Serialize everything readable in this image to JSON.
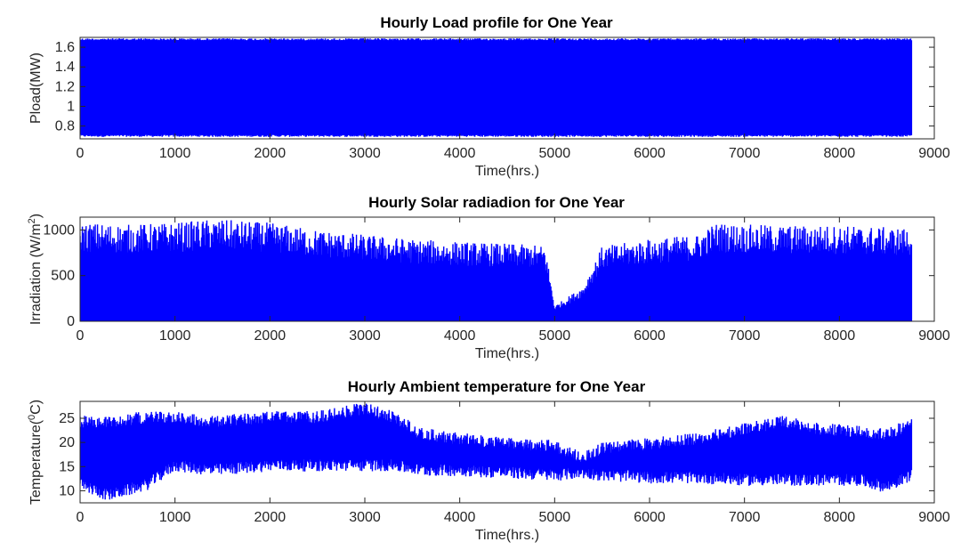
{
  "colors": {
    "series": "#0000ff",
    "axes": "#262626",
    "background": "#ffffff"
  },
  "chart_data": [
    {
      "type": "line",
      "title": "Hourly Load profile for One Year",
      "xlabel": "Time(hrs.)",
      "ylabel": "Pload(MW)",
      "xlim": [
        0,
        9000
      ],
      "ylim": [
        0.67,
        1.7
      ],
      "xticks": [
        0,
        1000,
        2000,
        3000,
        4000,
        5000,
        6000,
        7000,
        8000,
        9000
      ],
      "xtick_labels": [
        "0",
        "1000",
        "2000",
        "3000",
        "4000",
        "5000",
        "6000",
        "7000",
        "8000",
        "9000"
      ],
      "yticks": [
        0.8,
        1,
        1.2,
        1.4,
        1.6
      ],
      "ytick_labels": [
        "0.8",
        "1",
        "1.2",
        "1.4",
        "1.6"
      ],
      "grid": false,
      "series": [
        {
          "x_range": [
            0,
            8760
          ],
          "min": 0.69,
          "max": 1.69,
          "envelope": {
            "x": [
              0,
              8760
            ],
            "low": [
              0.69,
              0.69
            ],
            "high": [
              1.69,
              1.69
            ]
          }
        }
      ]
    },
    {
      "type": "line",
      "title": "Hourly Solar radiadion for One Year",
      "xlabel": "Time(hrs.)",
      "ylabel": "Irradiation (W/m",
      "ylabel_sup": "2",
      "ylabel_end": ")",
      "xlim": [
        0,
        9000
      ],
      "ylim": [
        0,
        1140
      ],
      "xticks": [
        0,
        1000,
        2000,
        3000,
        4000,
        5000,
        6000,
        7000,
        8000,
        9000
      ],
      "xtick_labels": [
        "0",
        "1000",
        "2000",
        "3000",
        "4000",
        "5000",
        "6000",
        "7000",
        "8000",
        "9000"
      ],
      "yticks": [
        0,
        500,
        1000
      ],
      "ytick_labels": [
        "0",
        "500",
        "1000"
      ],
      "grid": false,
      "series": [
        {
          "x_range": [
            0,
            8760
          ],
          "min": 0,
          "max": 1120,
          "envelope": {
            "x": [
              0,
              500,
              1000,
              1400,
              2000,
              2500,
              3000,
              3500,
              4000,
              4500,
              4900,
              5000,
              5300,
              5500,
              6000,
              6500,
              6700,
              7000,
              7500,
              8000,
              8500,
              8760
            ],
            "low": [
              0,
              0,
              0,
              0,
              0,
              0,
              0,
              0,
              0,
              0,
              0,
              0,
              0,
              0,
              0,
              0,
              0,
              0,
              0,
              0,
              0,
              0
            ],
            "high": [
              1080,
              1060,
              1080,
              1120,
              1080,
              1000,
              950,
              900,
              870,
              850,
              830,
              170,
              380,
              820,
              900,
              950,
              1080,
              1060,
              1050,
              1050,
              1030,
              1020
            ]
          }
        }
      ]
    },
    {
      "type": "line",
      "title": "Hourly Ambient temperature for One Year",
      "xlabel": "Time(hrs.)",
      "ylabel": "Temperature(",
      "ylabel_sup": "0",
      "ylabel_end": "C)",
      "xlim": [
        0,
        9000
      ],
      "ylim": [
        7.5,
        28.5
      ],
      "xticks": [
        0,
        1000,
        2000,
        3000,
        4000,
        5000,
        6000,
        7000,
        8000,
        9000
      ],
      "xtick_labels": [
        "0",
        "1000",
        "2000",
        "3000",
        "4000",
        "5000",
        "6000",
        "7000",
        "8000",
        "9000"
      ],
      "yticks": [
        10,
        15,
        20,
        25
      ],
      "ytick_labels": [
        "10",
        "15",
        "20",
        "25"
      ],
      "grid": false,
      "series": [
        {
          "x_range": [
            0,
            8760
          ],
          "min": 7.8,
          "max": 28.3,
          "envelope": {
            "x": [
              0,
              300,
              700,
              1000,
              1400,
              2000,
              2500,
              3000,
              3300,
              3600,
              4000,
              4500,
              5000,
              5300,
              5500,
              6000,
              6500,
              7000,
              7400,
              7800,
              8200,
              8500,
              8760
            ],
            "low": [
              10,
              7.8,
              10,
              14,
              13,
              14,
              14,
              14,
              14,
              13,
              13,
              12.5,
              12,
              12.5,
              12,
              11.5,
              11.5,
              11,
              11,
              11,
              11,
              9.5,
              12
            ],
            "high": [
              25.5,
              25.5,
              26.5,
              26.5,
              25.5,
              26.5,
              26.5,
              28.3,
              26.5,
              23,
              22,
              21,
              20.5,
              18,
              20,
              21,
              22,
              24,
              25.5,
              24,
              23.5,
              23,
              25
            ]
          }
        }
      ]
    }
  ]
}
